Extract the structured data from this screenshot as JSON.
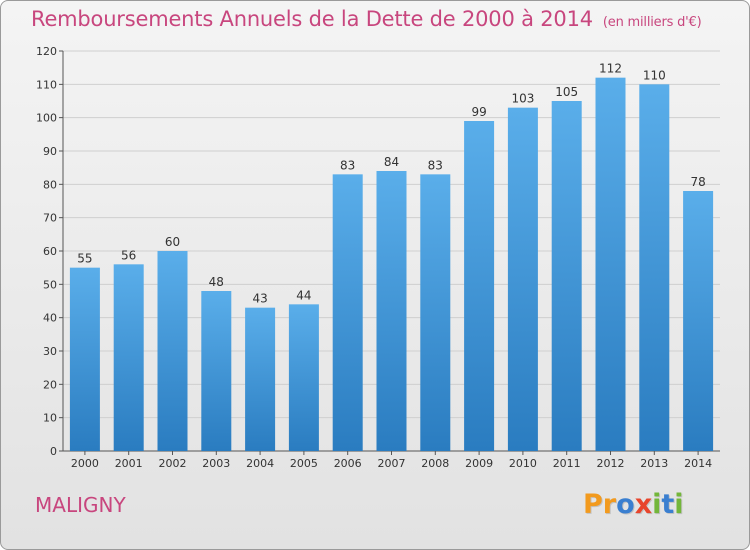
{
  "chart_data": {
    "type": "bar",
    "title": "Remboursements Annuels de la Dette de 2000 à 2014",
    "unit_note": "(en milliers d'€)",
    "categories": [
      "2000",
      "2001",
      "2002",
      "2003",
      "2004",
      "2005",
      "2006",
      "2007",
      "2008",
      "2009",
      "2010",
      "2011",
      "2012",
      "2013",
      "2014"
    ],
    "values": [
      55,
      56,
      60,
      48,
      43,
      44,
      83,
      84,
      83,
      99,
      103,
      105,
      112,
      110,
      78
    ],
    "ylim": [
      0,
      120
    ],
    "yticks": [
      0,
      10,
      20,
      30,
      40,
      50,
      60,
      70,
      80,
      90,
      100,
      110,
      120
    ],
    "xlabel": "",
    "ylabel": "",
    "grid": true,
    "bar_color_top": "#5aaeea",
    "bar_color_bottom": "#2a7cc0",
    "legend": ""
  },
  "footer": {
    "commune": "MALIGNY",
    "logo_letters": [
      "P",
      "r",
      "o",
      "x",
      "i",
      "t",
      "i"
    ],
    "logo_colors": [
      "#f29a1e",
      "#f29a1e",
      "#3a7fd0",
      "#e8452c",
      "#73b63a",
      "#3a7fd0",
      "#73b63a"
    ]
  },
  "colors": {
    "accent": "#c8467e",
    "grid": "#cfcfcf"
  }
}
